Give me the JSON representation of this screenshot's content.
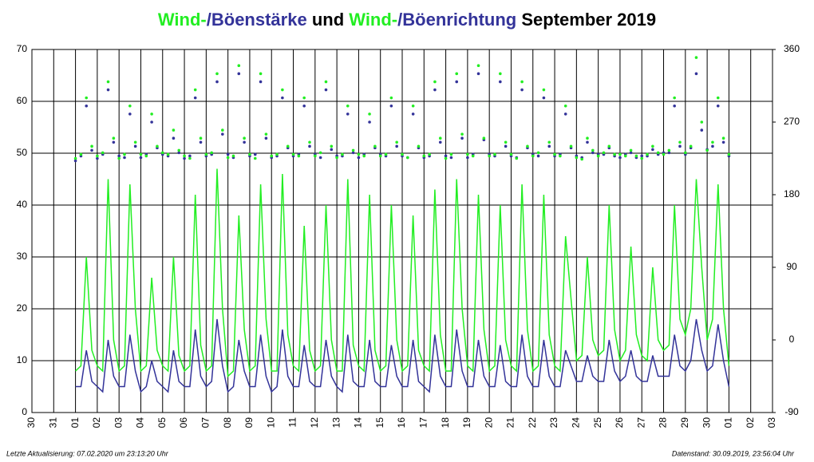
{
  "chart_data": {
    "type": "line",
    "title": [
      {
        "text": "Wind-",
        "color": "#22ee22"
      },
      {
        "text": "/Böenstärke",
        "color": "#333399"
      },
      {
        "text": " und ",
        "color": "#000000"
      },
      {
        "text": "Wind-",
        "color": "#22ee22"
      },
      {
        "text": "/Böenrichtung",
        "color": "#333399"
      },
      {
        "text": " September 2019",
        "color": "#000000"
      }
    ],
    "footer_left": "Letzte Aktualisierung: 07.02.2020 um 23:13:20 Uhr",
    "footer_right": "Datenstand: 30.09.2019, 23:56:04 Uhr",
    "xlim": [
      0,
      34
    ],
    "xticks": [
      {
        "value": 0,
        "label": "30"
      },
      {
        "value": 1,
        "label": "31"
      },
      {
        "value": 2,
        "label": "01"
      },
      {
        "value": 3,
        "label": "02"
      },
      {
        "value": 4,
        "label": "03"
      },
      {
        "value": 5,
        "label": "04"
      },
      {
        "value": 6,
        "label": "05"
      },
      {
        "value": 7,
        "label": "06"
      },
      {
        "value": 8,
        "label": "07"
      },
      {
        "value": 9,
        "label": "08"
      },
      {
        "value": 10,
        "label": "09"
      },
      {
        "value": 11,
        "label": "10"
      },
      {
        "value": 12,
        "label": "11"
      },
      {
        "value": 13,
        "label": "12"
      },
      {
        "value": 14,
        "label": "13"
      },
      {
        "value": 15,
        "label": "14"
      },
      {
        "value": 16,
        "label": "15"
      },
      {
        "value": 17,
        "label": "16"
      },
      {
        "value": 18,
        "label": "17"
      },
      {
        "value": 19,
        "label": "18"
      },
      {
        "value": 20,
        "label": "19"
      },
      {
        "value": 21,
        "label": "20"
      },
      {
        "value": 22,
        "label": "21"
      },
      {
        "value": 23,
        "label": "22"
      },
      {
        "value": 24,
        "label": "23"
      },
      {
        "value": 25,
        "label": "24"
      },
      {
        "value": 26,
        "label": "25"
      },
      {
        "value": 27,
        "label": "26"
      },
      {
        "value": 28,
        "label": "27"
      },
      {
        "value": 29,
        "label": "28"
      },
      {
        "value": 30,
        "label": "29"
      },
      {
        "value": 31,
        "label": "30"
      },
      {
        "value": 32,
        "label": "01"
      },
      {
        "value": 33,
        "label": "02"
      },
      {
        "value": 34,
        "label": "03"
      }
    ],
    "ylim": [
      0,
      70
    ],
    "yticks": [
      0,
      10,
      20,
      30,
      40,
      50,
      60,
      70
    ],
    "y2lim": [
      -90,
      360
    ],
    "y2ticks": [
      -90,
      0,
      90,
      180,
      270,
      360
    ],
    "grid": true,
    "x": [
      2,
      2.25,
      2.5,
      2.75,
      3,
      3.25,
      3.5,
      3.75,
      4,
      4.25,
      4.5,
      4.75,
      5,
      5.25,
      5.5,
      5.75,
      6,
      6.25,
      6.5,
      6.75,
      7,
      7.25,
      7.5,
      7.75,
      8,
      8.25,
      8.5,
      8.75,
      9,
      9.25,
      9.5,
      9.75,
      10,
      10.25,
      10.5,
      10.75,
      11,
      11.25,
      11.5,
      11.75,
      12,
      12.25,
      12.5,
      12.75,
      13,
      13.25,
      13.5,
      13.75,
      14,
      14.25,
      14.5,
      14.75,
      15,
      15.25,
      15.5,
      15.75,
      16,
      16.25,
      16.5,
      16.75,
      17,
      17.25,
      17.5,
      17.75,
      18,
      18.25,
      18.5,
      18.75,
      19,
      19.25,
      19.5,
      19.75,
      20,
      20.25,
      20.5,
      20.75,
      21,
      21.25,
      21.5,
      21.75,
      22,
      22.25,
      22.5,
      22.75,
      23,
      23.25,
      23.5,
      23.75,
      24,
      24.25,
      24.5,
      24.75,
      25,
      25.25,
      25.5,
      25.75,
      26,
      26.25,
      26.5,
      26.75,
      27,
      27.25,
      27.5,
      27.75,
      28,
      28.25,
      28.5,
      28.75,
      29,
      29.25,
      29.5,
      29.75,
      30,
      30.25,
      30.5,
      30.75,
      31,
      31.25,
      31.5,
      31.75,
      32
    ],
    "series": [
      {
        "color": "#333399",
        "style": "line",
        "values": [
          5,
          5,
          12,
          6,
          5,
          4,
          14,
          7,
          5,
          5,
          15,
          8,
          4,
          5,
          10,
          6,
          5,
          4,
          12,
          6,
          5,
          5,
          16,
          7,
          5,
          6,
          18,
          9,
          4,
          5,
          14,
          8,
          5,
          5,
          15,
          7,
          4,
          5,
          16,
          7,
          5,
          5,
          13,
          6,
          5,
          5,
          14,
          7,
          5,
          4,
          15,
          6,
          5,
          5,
          14,
          6,
          5,
          5,
          13,
          7,
          5,
          5,
          14,
          6,
          5,
          4,
          15,
          7,
          5,
          5,
          16,
          8,
          5,
          5,
          14,
          7,
          5,
          5,
          13,
          6,
          5,
          5,
          15,
          7,
          5,
          5,
          14,
          7,
          5,
          5,
          12,
          9,
          6,
          6,
          11,
          7,
          6,
          6,
          14,
          8,
          6,
          7,
          12,
          7,
          6,
          6,
          11,
          7,
          7,
          7,
          15,
          9,
          8,
          10,
          18,
          12,
          8,
          9,
          17,
          10,
          5
        ]
      },
      {
        "color": "#22ee22",
        "style": "line",
        "values": [
          8,
          9,
          30,
          12,
          9,
          8,
          45,
          14,
          8,
          9,
          44,
          20,
          8,
          9,
          26,
          12,
          9,
          8,
          30,
          11,
          8,
          9,
          42,
          13,
          8,
          9,
          47,
          20,
          7,
          8,
          38,
          16,
          8,
          9,
          44,
          18,
          8,
          8,
          46,
          15,
          9,
          8,
          36,
          12,
          8,
          9,
          40,
          14,
          8,
          8,
          45,
          13,
          9,
          8,
          42,
          12,
          8,
          9,
          40,
          14,
          8,
          9,
          38,
          12,
          9,
          8,
          43,
          15,
          8,
          8,
          45,
          20,
          9,
          8,
          42,
          16,
          8,
          9,
          40,
          14,
          9,
          8,
          44,
          16,
          8,
          9,
          42,
          15,
          9,
          8,
          34,
          22,
          10,
          11,
          30,
          14,
          11,
          12,
          40,
          16,
          10,
          12,
          32,
          15,
          11,
          10,
          28,
          14,
          12,
          13,
          40,
          18,
          15,
          20,
          45,
          28,
          14,
          18,
          44,
          20,
          9
        ]
      },
      {
        "color": "#333399",
        "style": "dots",
        "axis": "y2",
        "values": [
          222,
          228,
          290,
          235,
          225,
          230,
          310,
          245,
          228,
          226,
          280,
          240,
          226,
          230,
          270,
          238,
          230,
          228,
          250,
          232,
          225,
          228,
          300,
          245,
          228,
          230,
          320,
          255,
          230,
          226,
          330,
          245,
          228,
          230,
          320,
          250,
          226,
          228,
          300,
          238,
          228,
          230,
          290,
          240,
          230,
          226,
          310,
          236,
          228,
          228,
          280,
          232,
          226,
          230,
          270,
          238,
          230,
          228,
          290,
          240,
          228,
          226,
          280,
          238,
          226,
          228,
          310,
          245,
          228,
          226,
          320,
          250,
          226,
          230,
          330,
          248,
          230,
          228,
          320,
          240,
          228,
          226,
          310,
          238,
          230,
          228,
          300,
          240,
          228,
          230,
          280,
          238,
          228,
          226,
          245,
          232,
          230,
          230,
          238,
          228,
          226,
          230,
          232,
          226,
          228,
          228,
          236,
          230,
          232,
          232,
          290,
          240,
          230,
          238,
          330,
          260,
          236,
          240,
          290,
          245,
          228
        ]
      },
      {
        "color": "#22ee22",
        "style": "dots",
        "axis": "y2",
        "values": [
          225,
          230,
          300,
          240,
          228,
          232,
          320,
          250,
          225,
          230,
          290,
          245,
          230,
          228,
          280,
          240,
          232,
          230,
          260,
          235,
          228,
          225,
          310,
          250,
          230,
          232,
          330,
          260,
          226,
          228,
          340,
          250,
          230,
          225,
          330,
          255,
          228,
          230,
          310,
          240,
          230,
          228,
          300,
          245,
          228,
          232,
          320,
          240,
          226,
          230,
          290,
          235,
          230,
          228,
          280,
          240,
          228,
          230,
          300,
          245,
          230,
          226,
          290,
          240,
          228,
          230,
          320,
          250,
          225,
          230,
          330,
          255,
          230,
          228,
          340,
          250,
          228,
          230,
          330,
          245,
          230,
          225,
          320,
          240,
          228,
          232,
          310,
          245,
          230,
          228,
          290,
          240,
          226,
          224,
          250,
          235,
          228,
          232,
          240,
          230,
          230,
          228,
          235,
          228,
          225,
          230,
          240,
          232,
          230,
          235,
          300,
          245,
          232,
          240,
          350,
          270,
          235,
          245,
          300,
          250,
          230
        ]
      }
    ]
  }
}
